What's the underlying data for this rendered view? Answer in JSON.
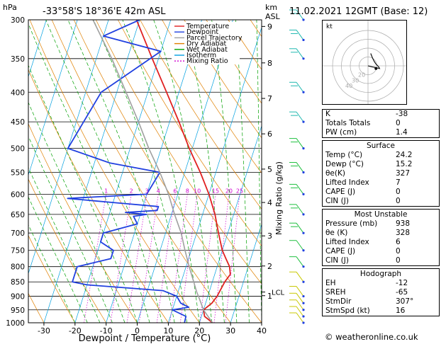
{
  "header": {
    "title": "-33°58'S  18°36'E  42m  ASL",
    "datetime": "11.02.2021  12GMT  (Base: 12)",
    "hpa_label": "hPa",
    "km_label": "km",
    "asl_label": "ASL"
  },
  "chart_data": {
    "type": "line",
    "xlabel": "Dewpoint / Temperature (°C)",
    "ylabel": "Mixing Ratio (g/kg)",
    "xlim": [
      -35,
      40
    ],
    "ylim": [
      1000,
      300
    ],
    "pressure_ticks": [
      300,
      350,
      400,
      450,
      500,
      550,
      600,
      650,
      700,
      750,
      800,
      850,
      900,
      950,
      1000
    ],
    "temp_ticks": [
      -30,
      -20,
      -10,
      0,
      10,
      20,
      30,
      40
    ],
    "km_ticks": [
      {
        "label": "9",
        "p": 308
      },
      {
        "label": "8",
        "p": 356
      },
      {
        "label": "7",
        "p": 410
      },
      {
        "label": "6",
        "p": 472
      },
      {
        "label": "5",
        "p": 543
      },
      {
        "label": "4",
        "p": 620
      },
      {
        "label": "3",
        "p": 708
      },
      {
        "label": "2",
        "p": 798
      },
      {
        "label": "1",
        "p": 898
      }
    ],
    "lcl_label": "LCL",
    "lcl_p": 885,
    "mixing_ratio_labels": [
      "1",
      "2",
      "3",
      "4",
      "6",
      "8",
      "10",
      "15",
      "20",
      "25"
    ],
    "mixing_ratio_values": [
      1,
      2,
      3,
      4,
      6,
      8,
      10,
      15,
      20,
      25
    ],
    "series": [
      {
        "name": "Temperature",
        "color": "#e02020",
        "points": [
          [
            1000,
            24.2
          ],
          [
            975,
            21
          ],
          [
            950,
            20
          ],
          [
            925,
            22
          ],
          [
            900,
            23
          ],
          [
            850,
            24
          ],
          [
            825,
            25
          ],
          [
            800,
            24
          ],
          [
            775,
            22
          ],
          [
            750,
            20
          ],
          [
            700,
            17
          ],
          [
            650,
            14
          ],
          [
            600,
            10
          ],
          [
            550,
            5
          ],
          [
            500,
            -1
          ],
          [
            450,
            -7
          ],
          [
            400,
            -14
          ],
          [
            350,
            -22
          ],
          [
            300,
            -31
          ]
        ]
      },
      {
        "name": "Dewpoint",
        "color": "#2040e0",
        "points": [
          [
            1000,
            15.2
          ],
          [
            975,
            15
          ],
          [
            960,
            12
          ],
          [
            950,
            10
          ],
          [
            940,
            15
          ],
          [
            925,
            12
          ],
          [
            900,
            10
          ],
          [
            880,
            5
          ],
          [
            860,
            -20
          ],
          [
            850,
            -25
          ],
          [
            800,
            -25
          ],
          [
            775,
            -15
          ],
          [
            750,
            -15
          ],
          [
            725,
            -20
          ],
          [
            700,
            -20
          ],
          [
            675,
            -10
          ],
          [
            655,
            -12
          ],
          [
            650,
            -8
          ],
          [
            645,
            -15
          ],
          [
            640,
            -5
          ],
          [
            630,
            -5
          ],
          [
            620,
            -20
          ],
          [
            610,
            -35
          ],
          [
            600,
            -10
          ],
          [
            550,
            -8
          ],
          [
            530,
            -25
          ],
          [
            500,
            -40
          ],
          [
            400,
            -35
          ],
          [
            340,
            -20
          ],
          [
            320,
            -40
          ],
          [
            300,
            -30
          ]
        ]
      },
      {
        "name": "Parcel Trajectory",
        "color": "#a0a0a0",
        "points": [
          [
            1000,
            24.2
          ],
          [
            950,
            20
          ],
          [
            900,
            17
          ],
          [
            885,
            16
          ],
          [
            850,
            14
          ],
          [
            800,
            11
          ],
          [
            750,
            8
          ],
          [
            700,
            5
          ],
          [
            650,
            1
          ],
          [
            600,
            -3
          ],
          [
            550,
            -8
          ],
          [
            500,
            -14
          ],
          [
            450,
            -20
          ],
          [
            400,
            -27
          ],
          [
            350,
            -35
          ],
          [
            300,
            -45
          ]
        ]
      }
    ],
    "legend": [
      {
        "label": "Temperature",
        "color": "#e02020",
        "dash": ""
      },
      {
        "label": "Dewpoint",
        "color": "#2040e0",
        "dash": ""
      },
      {
        "label": "Parcel Trajectory",
        "color": "#a0a0a0",
        "dash": ""
      },
      {
        "label": "Dry Adiabat",
        "color": "#e08000",
        "dash": ""
      },
      {
        "label": "Wet Adiabat",
        "color": "#00a000",
        "dash": ""
      },
      {
        "label": "Isotherm",
        "color": "#00a0e0",
        "dash": ""
      },
      {
        "label": "Mixing Ratio",
        "color": "#d000d0",
        "dash": "2,2"
      }
    ],
    "legend_placement": "top-left",
    "wind_profile": [
      1000,
      975,
      950,
      925,
      900,
      850,
      800,
      750,
      700,
      650,
      600,
      550,
      500,
      450,
      400,
      350,
      325,
      300
    ]
  },
  "hodograph": {
    "unit_label": "kt",
    "ring_labels": [
      "10",
      "20",
      "30",
      "40"
    ],
    "trace_kt": [
      [
        0,
        0
      ],
      [
        4,
        -1
      ],
      [
        9,
        -2
      ],
      [
        13,
        -3
      ],
      [
        12,
        -1
      ],
      [
        9,
        2
      ],
      [
        7,
        5
      ],
      [
        5,
        9
      ],
      [
        3,
        14
      ]
    ]
  },
  "indices": {
    "top": [
      {
        "label": "K",
        "value": "-38"
      },
      {
        "label": "Totals Totals",
        "value": "0"
      },
      {
        "label": "PW (cm)",
        "value": "1.4"
      }
    ],
    "surface_title": "Surface",
    "surface": [
      {
        "label": "Temp (°C)",
        "value": "24.2"
      },
      {
        "label": "Dewp (°C)",
        "value": "15.2"
      },
      {
        "label": "θe(K)",
        "value": "327"
      },
      {
        "label": "Lifted Index",
        "value": "7"
      },
      {
        "label": "CAPE (J)",
        "value": "0"
      },
      {
        "label": "CIN (J)",
        "value": "0"
      }
    ],
    "unstable_title": "Most Unstable",
    "unstable": [
      {
        "label": "Pressure (mb)",
        "value": "938"
      },
      {
        "label": "θe (K)",
        "value": "328"
      },
      {
        "label": "Lifted Index",
        "value": "6"
      },
      {
        "label": "CAPE (J)",
        "value": "0"
      },
      {
        "label": "CIN (J)",
        "value": "0"
      }
    ],
    "hodo_title": "Hodograph",
    "hodo": [
      {
        "label": "EH",
        "value": "-12"
      },
      {
        "label": "SREH",
        "value": "-65"
      },
      {
        "label": "StmDir",
        "value": "307°"
      },
      {
        "label": "StmSpd (kt)",
        "value": "16"
      }
    ]
  },
  "credit": "© weatheronline.co.uk"
}
